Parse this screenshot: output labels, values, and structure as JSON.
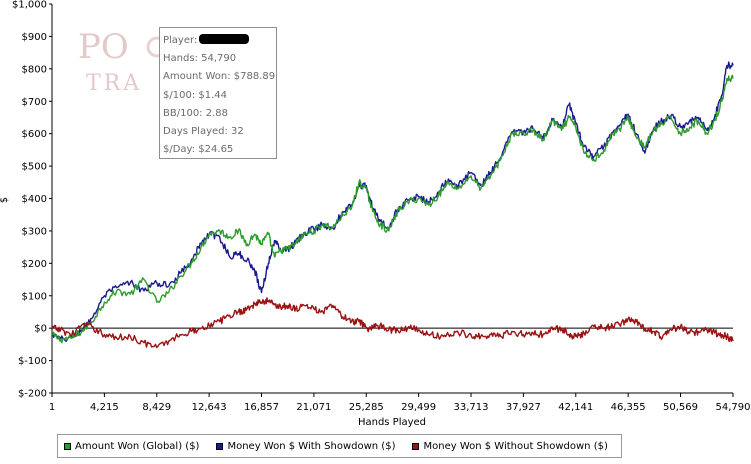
{
  "chart_data": {
    "type": "line",
    "title": "",
    "xlabel": "Hands Played",
    "ylabel": "$",
    "xlim": [
      1,
      54790
    ],
    "ylim": [
      -200,
      1000
    ],
    "grid": false,
    "legend_position": "bottom",
    "x_ticks": [
      1,
      4215,
      8429,
      12643,
      16857,
      21071,
      25285,
      29499,
      33713,
      37927,
      42141,
      46355,
      50569,
      54790
    ],
    "x_tick_labels": [
      "1",
      "4,215",
      "8,429",
      "12,643",
      "16,857",
      "21,071",
      "25,285",
      "29,499",
      "33,713",
      "37,927",
      "42,141",
      "46,355",
      "50,569",
      "54,790"
    ],
    "y_ticks": [
      -200,
      -100,
      0,
      100,
      200,
      300,
      400,
      500,
      600,
      700,
      800,
      900,
      1000
    ],
    "y_tick_labels": [
      "$-200",
      "$-100",
      "$0",
      "$100",
      "$200",
      "$300",
      "$400",
      "$500",
      "$600",
      "$700",
      "$800",
      "$900",
      "$1,000"
    ],
    "zero_line": 0,
    "series": [
      {
        "name": "Amount Won (Global) ($)",
        "color": "#2e9b2e",
        "x": [
          1,
          700,
          1600,
          2400,
          3200,
          4215,
          5200,
          6300,
          7400,
          8429,
          9400,
          10300,
          11200,
          12000,
          12643,
          13500,
          14300,
          15000,
          15700,
          16300,
          16857,
          17400,
          17900,
          18400,
          19000,
          19600,
          20300,
          21071,
          21800,
          22600,
          23400,
          24100,
          24700,
          25285,
          25800,
          26400,
          27100,
          27800,
          28600,
          29499,
          30300,
          31100,
          31900,
          32700,
          33713,
          34500,
          35300,
          36100,
          37000,
          37927,
          38700,
          39500,
          40300,
          41000,
          41600,
          42141,
          42800,
          43600,
          44400,
          45100,
          45800,
          46355,
          47000,
          47700,
          48400,
          49100,
          49800,
          50569,
          51300,
          52000,
          52700,
          53300,
          53900,
          54300,
          54790
        ],
        "values": [
          -20,
          -35,
          -30,
          -10,
          20,
          80,
          115,
          105,
          150,
          80,
          110,
          160,
          200,
          250,
          290,
          300,
          280,
          300,
          260,
          290,
          260,
          290,
          220,
          240,
          245,
          260,
          290,
          300,
          320,
          310,
          350,
          370,
          450,
          430,
          360,
          320,
          300,
          360,
          390,
          400,
          380,
          410,
          450,
          430,
          470,
          430,
          470,
          520,
          600,
          600,
          610,
          580,
          640,
          610,
          650,
          620,
          540,
          520,
          550,
          600,
          620,
          650,
          590,
          560,
          610,
          630,
          650,
          600,
          620,
          640,
          600,
          640,
          700,
          770,
          770
        ]
      },
      {
        "name": "Money Won $ With Showdown ($)",
        "color": "#1a1a8f",
        "x": [
          1,
          700,
          1600,
          2400,
          3200,
          4215,
          5200,
          6300,
          7400,
          8429,
          9400,
          10300,
          11200,
          12000,
          12643,
          13500,
          14300,
          15000,
          15700,
          16300,
          16857,
          17400,
          17900,
          18400,
          19000,
          19600,
          20300,
          21071,
          21800,
          22600,
          23400,
          24100,
          24700,
          25285,
          25800,
          26400,
          27100,
          27800,
          28600,
          29499,
          30300,
          31100,
          31900,
          32700,
          33713,
          34500,
          35300,
          36100,
          37000,
          37927,
          38700,
          39500,
          40300,
          41000,
          41600,
          42141,
          42800,
          43600,
          44400,
          45100,
          45800,
          46355,
          47000,
          47700,
          48400,
          49100,
          49800,
          50569,
          51300,
          52000,
          52700,
          53300,
          53900,
          54300,
          54790
        ],
        "values": [
          -20,
          -35,
          -30,
          -5,
          30,
          100,
          125,
          140,
          115,
          140,
          130,
          170,
          210,
          260,
          290,
          280,
          220,
          230,
          210,
          180,
          110,
          200,
          270,
          240,
          245,
          265,
          295,
          305,
          320,
          310,
          360,
          380,
          440,
          440,
          370,
          330,
          310,
          365,
          395,
          405,
          390,
          420,
          460,
          440,
          480,
          440,
          480,
          525,
          605,
          605,
          615,
          585,
          645,
          615,
          690,
          630,
          560,
          530,
          560,
          600,
          630,
          660,
          600,
          540,
          615,
          640,
          655,
          620,
          640,
          650,
          610,
          650,
          720,
          810,
          810
        ]
      },
      {
        "name": "Money Won $ Without Showdown ($)",
        "color": "#9b1212",
        "x": [
          1,
          700,
          1600,
          2400,
          3200,
          4215,
          5200,
          6300,
          7400,
          8429,
          9400,
          10300,
          11200,
          12000,
          12643,
          13500,
          14300,
          15000,
          15700,
          16300,
          16857,
          17400,
          17900,
          18400,
          19000,
          19600,
          20300,
          21071,
          21800,
          22600,
          23400,
          24100,
          24700,
          25285,
          25800,
          26400,
          27100,
          27800,
          28600,
          29499,
          30300,
          31100,
          31900,
          32700,
          33713,
          34500,
          35300,
          36100,
          37000,
          37927,
          38700,
          39500,
          40300,
          41000,
          41600,
          42141,
          42800,
          43600,
          44400,
          45100,
          45800,
          46355,
          47000,
          47700,
          48400,
          49100,
          49800,
          50569,
          51300,
          52000,
          52700,
          53300,
          53900,
          54300,
          54790
        ],
        "values": [
          0,
          -5,
          -20,
          10,
          5,
          -20,
          -30,
          -25,
          -45,
          -60,
          -40,
          -20,
          -10,
          0,
          10,
          20,
          40,
          50,
          60,
          75,
          80,
          85,
          75,
          65,
          70,
          60,
          70,
          60,
          50,
          70,
          35,
          20,
          20,
          0,
          0,
          10,
          -5,
          -5,
          0,
          -5,
          -20,
          -25,
          -20,
          -15,
          -20,
          -25,
          -20,
          -25,
          -10,
          -20,
          -15,
          -20,
          -5,
          0,
          -20,
          -25,
          -15,
          5,
          0,
          5,
          15,
          30,
          20,
          0,
          -10,
          -30,
          -5,
          5,
          -15,
          -10,
          -5,
          -15,
          -20,
          -25,
          -40
        ]
      }
    ]
  },
  "tooltip": {
    "player_label": "Player:",
    "hands": "Hands: 54,790",
    "amount_won": "Amount Won: $788.89",
    "per_100": "$/100: $1.44",
    "bb_100": "BB/100: 2.88",
    "days_played": "Days Played: 32",
    "per_day": "$/Day: $24.65"
  },
  "watermark": {
    "text_top": "PO",
    "text_bottom": "TRA",
    "color": "#e4c9c9"
  },
  "legend": {
    "items": [
      {
        "label": "Amount Won (Global) ($)",
        "color": "#2e9b2e"
      },
      {
        "label": "Money Won $ With Showdown ($)",
        "color": "#1a1a8f"
      },
      {
        "label": "Money Won $ Without Showdown ($)",
        "color": "#9b1212"
      }
    ]
  }
}
